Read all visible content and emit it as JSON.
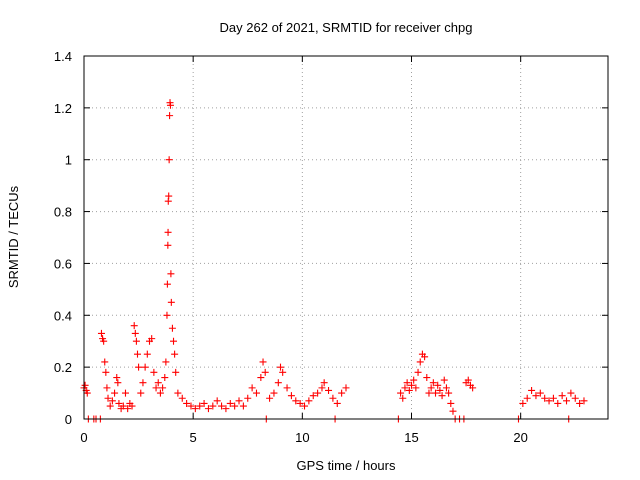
{
  "chart_data": {
    "type": "scatter",
    "title": "Day 262 of 2021, SRMTID for receiver chpg",
    "xlabel": "GPS time / hours",
    "ylabel": "SRMTID / TECUs",
    "xlim": [
      0,
      24
    ],
    "ylim": [
      0,
      1.4
    ],
    "x_ticks": [
      0,
      5,
      10,
      15,
      20
    ],
    "x_tick_labels": [
      "0",
      "5",
      "10",
      "15",
      "20"
    ],
    "y_ticks": [
      0,
      0.2,
      0.4,
      0.6,
      0.8,
      1.0,
      1.2,
      1.4
    ],
    "y_tick_labels": [
      "0",
      "0.2",
      "0.4",
      "0.6",
      "0.8",
      "1",
      "1.2",
      "1.4"
    ],
    "grid": true,
    "marker": "plus",
    "color": "#ff0000",
    "series": [
      {
        "name": "SRMTID",
        "points": [
          [
            0.0,
            0.12
          ],
          [
            0.05,
            0.13
          ],
          [
            0.1,
            0.11
          ],
          [
            0.15,
            0.1
          ],
          [
            0.2,
            0.0
          ],
          [
            0.45,
            0.0
          ],
          [
            0.55,
            0.0
          ],
          [
            0.75,
            0.0
          ],
          [
            0.8,
            0.33
          ],
          [
            0.85,
            0.31
          ],
          [
            0.9,
            0.3
          ],
          [
            0.95,
            0.22
          ],
          [
            1.0,
            0.18
          ],
          [
            1.05,
            0.12
          ],
          [
            1.1,
            0.08
          ],
          [
            1.2,
            0.05
          ],
          [
            1.3,
            0.07
          ],
          [
            1.4,
            0.1
          ],
          [
            1.5,
            0.16
          ],
          [
            1.55,
            0.14
          ],
          [
            1.6,
            0.06
          ],
          [
            1.7,
            0.04
          ],
          [
            1.8,
            0.05
          ],
          [
            1.9,
            0.1
          ],
          [
            2.0,
            0.04
          ],
          [
            2.1,
            0.06
          ],
          [
            2.2,
            0.05
          ],
          [
            2.3,
            0.36
          ],
          [
            2.35,
            0.33
          ],
          [
            2.4,
            0.3
          ],
          [
            2.45,
            0.25
          ],
          [
            2.5,
            0.2
          ],
          [
            2.6,
            0.1
          ],
          [
            2.7,
            0.14
          ],
          [
            2.8,
            0.2
          ],
          [
            2.9,
            0.25
          ],
          [
            3.0,
            0.3
          ],
          [
            3.1,
            0.31
          ],
          [
            3.2,
            0.18
          ],
          [
            3.3,
            0.12
          ],
          [
            3.4,
            0.14
          ],
          [
            3.5,
            0.1
          ],
          [
            3.6,
            0.12
          ],
          [
            3.7,
            0.16
          ],
          [
            3.75,
            0.22
          ],
          [
            3.8,
            0.4
          ],
          [
            3.82,
            0.52
          ],
          [
            3.84,
            0.67
          ],
          [
            3.85,
            0.72
          ],
          [
            3.86,
            0.84
          ],
          [
            3.88,
            0.86
          ],
          [
            3.9,
            1.0
          ],
          [
            3.92,
            1.17
          ],
          [
            3.94,
            1.22
          ],
          [
            3.96,
            1.21
          ],
          [
            3.98,
            0.56
          ],
          [
            4.0,
            0.45
          ],
          [
            4.05,
            0.35
          ],
          [
            4.1,
            0.3
          ],
          [
            4.15,
            0.25
          ],
          [
            4.2,
            0.18
          ],
          [
            4.3,
            0.1
          ],
          [
            4.5,
            0.08
          ],
          [
            4.7,
            0.06
          ],
          [
            4.9,
            0.05
          ],
          [
            5.1,
            0.04
          ],
          [
            5.3,
            0.05
          ],
          [
            5.5,
            0.06
          ],
          [
            5.7,
            0.04
          ],
          [
            5.9,
            0.05
          ],
          [
            6.1,
            0.07
          ],
          [
            6.3,
            0.05
          ],
          [
            6.5,
            0.04
          ],
          [
            6.7,
            0.06
          ],
          [
            6.9,
            0.05
          ],
          [
            7.1,
            0.07
          ],
          [
            7.3,
            0.05
          ],
          [
            7.5,
            0.08
          ],
          [
            7.7,
            0.12
          ],
          [
            7.9,
            0.1
          ],
          [
            8.1,
            0.16
          ],
          [
            8.2,
            0.22
          ],
          [
            8.3,
            0.18
          ],
          [
            8.35,
            0.0
          ],
          [
            8.5,
            0.08
          ],
          [
            8.7,
            0.1
          ],
          [
            8.9,
            0.14
          ],
          [
            9.0,
            0.2
          ],
          [
            9.1,
            0.18
          ],
          [
            9.3,
            0.12
          ],
          [
            9.5,
            0.09
          ],
          [
            9.7,
            0.07
          ],
          [
            9.9,
            0.06
          ],
          [
            10.1,
            0.05
          ],
          [
            10.3,
            0.07
          ],
          [
            10.5,
            0.09
          ],
          [
            10.7,
            0.1
          ],
          [
            10.9,
            0.12
          ],
          [
            11.0,
            0.14
          ],
          [
            11.2,
            0.11
          ],
          [
            11.4,
            0.08
          ],
          [
            11.5,
            0.0
          ],
          [
            11.6,
            0.06
          ],
          [
            11.8,
            0.1
          ],
          [
            12.0,
            0.12
          ],
          [
            14.4,
            0.0
          ],
          [
            14.5,
            0.1
          ],
          [
            14.6,
            0.08
          ],
          [
            14.7,
            0.12
          ],
          [
            14.8,
            0.14
          ],
          [
            14.9,
            0.11
          ],
          [
            15.0,
            0.13
          ],
          [
            15.1,
            0.15
          ],
          [
            15.2,
            0.12
          ],
          [
            15.3,
            0.18
          ],
          [
            15.4,
            0.22
          ],
          [
            15.5,
            0.25
          ],
          [
            15.6,
            0.24
          ],
          [
            15.7,
            0.16
          ],
          [
            15.8,
            0.1
          ],
          [
            15.9,
            0.12
          ],
          [
            16.0,
            0.14
          ],
          [
            16.1,
            0.1
          ],
          [
            16.2,
            0.13
          ],
          [
            16.3,
            0.11
          ],
          [
            16.4,
            0.09
          ],
          [
            16.5,
            0.15
          ],
          [
            16.6,
            0.12
          ],
          [
            16.7,
            0.1
          ],
          [
            16.8,
            0.06
          ],
          [
            16.9,
            0.03
          ],
          [
            17.0,
            0.0
          ],
          [
            17.2,
            0.0
          ],
          [
            17.4,
            0.0
          ],
          [
            17.5,
            0.14
          ],
          [
            17.6,
            0.15
          ],
          [
            17.7,
            0.13
          ],
          [
            17.8,
            0.12
          ],
          [
            19.9,
            0.0
          ],
          [
            20.1,
            0.06
          ],
          [
            20.3,
            0.08
          ],
          [
            20.5,
            0.11
          ],
          [
            20.7,
            0.09
          ],
          [
            20.9,
            0.1
          ],
          [
            21.1,
            0.08
          ],
          [
            21.3,
            0.07
          ],
          [
            21.5,
            0.08
          ],
          [
            21.7,
            0.06
          ],
          [
            21.9,
            0.09
          ],
          [
            22.1,
            0.07
          ],
          [
            22.2,
            0.0
          ],
          [
            22.3,
            0.1
          ],
          [
            22.5,
            0.08
          ],
          [
            22.7,
            0.06
          ],
          [
            22.9,
            0.07
          ]
        ]
      }
    ]
  }
}
